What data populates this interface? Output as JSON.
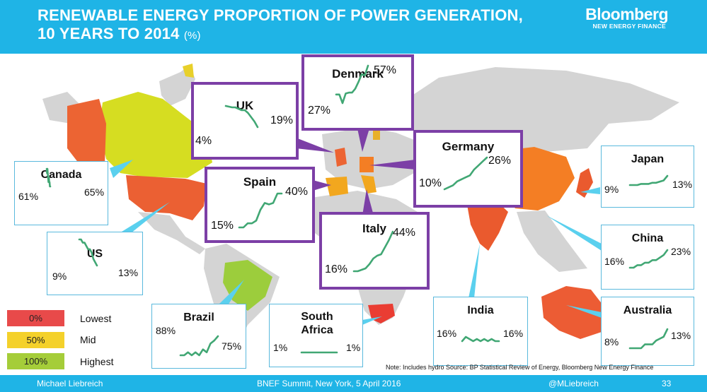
{
  "header": {
    "title_line1": "RENEWABLE ENERGY PROPORTION OF POWER GENERATION,",
    "title_line2": "10 YEARS TO 2014",
    "title_unit": "(%)",
    "logo_main": "Bloomberg",
    "logo_sub": "NEW ENERGY FINANCE"
  },
  "legend": [
    {
      "value": "0%",
      "label": "Lowest",
      "color": "#e84a4a"
    },
    {
      "value": "50%",
      "label": "Mid",
      "color": "#f4d12b"
    },
    {
      "value": "100%",
      "label": "Highest",
      "color": "#a5cd39"
    }
  ],
  "note": "Note: Includes hydro  Source: BP Statistical Review of Energy, Bloomberg New Energy Finance",
  "footer": {
    "author": "Michael Liebreich",
    "event": "BNEF Summit, New York, 5 April 2016",
    "handle": "@MLiebreich",
    "page": "33"
  },
  "chart_data": {
    "type": "line",
    "title": "RENEWABLE ENERGY PROPORTION OF POWER GENERATION, 10 YEARS TO 2014 (%)",
    "period": "2004-2014",
    "unit": "%",
    "series": [
      {
        "name": "Canada",
        "start": 61,
        "end": 65,
        "start_label": "61%",
        "end_label": "65%",
        "values": [
          61,
          62,
          61,
          62,
          63,
          64,
          63,
          64,
          64,
          65,
          65
        ]
      },
      {
        "name": "US",
        "start": 9,
        "end": 13,
        "start_label": "9%",
        "end_label": "13%",
        "values": [
          9,
          9,
          9.5,
          9.5,
          10,
          10.5,
          10.5,
          11,
          12,
          12.5,
          13
        ]
      },
      {
        "name": "UK",
        "start": 4,
        "end": 19,
        "start_label": "4%",
        "end_label": "19%",
        "values": [
          4,
          4.5,
          5,
          5,
          6,
          7,
          7,
          9,
          12,
          15,
          19
        ]
      },
      {
        "name": "Denmark",
        "start": 27,
        "end": 57,
        "start_label": "27%",
        "end_label": "57%",
        "values": [
          27,
          27,
          18,
          28,
          29,
          29,
          33,
          40,
          48,
          47,
          57
        ]
      },
      {
        "name": "Germany",
        "start": 10,
        "end": 26,
        "start_label": "10%",
        "end_label": "26%",
        "values": [
          10,
          11,
          12,
          14,
          15,
          16,
          17,
          20,
          22,
          24,
          26
        ]
      },
      {
        "name": "Spain",
        "start": 15,
        "end": 40,
        "start_label": "15%",
        "end_label": "40%",
        "values": [
          15,
          15,
          18,
          18,
          20,
          28,
          33,
          32,
          33,
          40,
          40
        ]
      },
      {
        "name": "Italy",
        "start": 16,
        "end": 44,
        "start_label": "16%",
        "end_label": "44%",
        "values": [
          16,
          16,
          17,
          18,
          21,
          25,
          27,
          28,
          33,
          38,
          44
        ]
      },
      {
        "name": "Japan",
        "start": 9,
        "end": 13,
        "start_label": "9%",
        "end_label": "13%",
        "values": [
          9,
          9,
          9,
          9.5,
          9.5,
          9.5,
          10,
          10,
          10.5,
          11,
          13
        ]
      },
      {
        "name": "China",
        "start": 16,
        "end": 23,
        "start_label": "16%",
        "end_label": "23%",
        "values": [
          16,
          16,
          17,
          17,
          18,
          18,
          19,
          19,
          20,
          21,
          23
        ]
      },
      {
        "name": "India",
        "start": 16,
        "end": 16,
        "start_label": "16%",
        "end_label": "16%",
        "values": [
          16,
          17,
          16.5,
          16,
          16.5,
          16,
          16.5,
          16,
          16.5,
          16,
          16
        ]
      },
      {
        "name": "Australia",
        "start": 8,
        "end": 13,
        "start_label": "8%",
        "end_label": "13%",
        "values": [
          8,
          8,
          8,
          8,
          9,
          9,
          9,
          10,
          10.5,
          11,
          13
        ]
      },
      {
        "name": "Brazil",
        "start": 88,
        "end": 75,
        "start_label": "88%",
        "end_label": "75%",
        "values": [
          88,
          88,
          86,
          88,
          86,
          88,
          84,
          86,
          80,
          78,
          75
        ]
      },
      {
        "name": "South Africa",
        "start": 1,
        "end": 1,
        "start_label": "1%",
        "end_label": "1%",
        "values": [
          1,
          1,
          1,
          1,
          1,
          1,
          1,
          1,
          1,
          1,
          1
        ]
      }
    ]
  }
}
